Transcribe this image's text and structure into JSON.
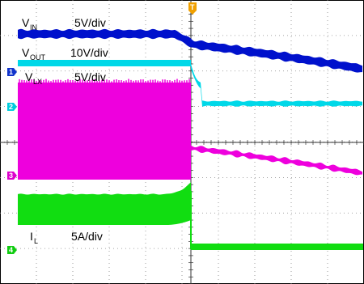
{
  "chart_data": {
    "type": "line",
    "title": "",
    "trigger_marker": "T",
    "timebase_divisions": 10,
    "vertical_divisions": 8,
    "grid": "dotted",
    "channels": [
      {
        "id": "1",
        "name_main": "V",
        "name_sub": "IN",
        "scale": "5V/div",
        "color": "#0011cc",
        "description": "flat before trigger, then slowly decaying"
      },
      {
        "id": "2",
        "name_main": "V",
        "name_sub": "OUT",
        "scale": "10V/div",
        "color": "#00d8e8",
        "description": "flat before trigger, steps down after trigger"
      },
      {
        "id": "3",
        "name_main": "V",
        "name_sub": "LX",
        "scale": "5V/div",
        "color": "#ee00dd",
        "description": "switching band before trigger, decaying trace after"
      },
      {
        "id": "4",
        "name_main": "I",
        "name_sub": "L",
        "scale": "5A/div",
        "color": "#11dd11",
        "description": "switching current band before trigger, near-flat after"
      }
    ]
  }
}
